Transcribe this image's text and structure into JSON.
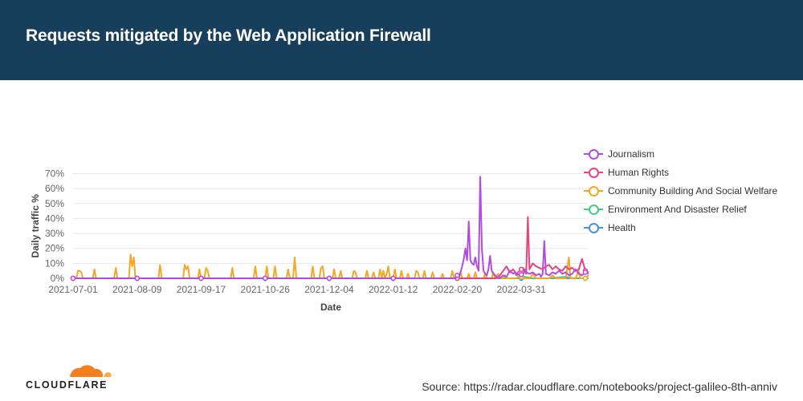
{
  "header": {
    "title": "Requests mitigated by the Web Application Firewall"
  },
  "footer": {
    "logo_text": "CLOUDFLARE",
    "source": "Source: https://radar.cloudflare.com/notebooks/project-galileo-8th-anniv"
  },
  "chart_data": {
    "type": "line",
    "xlabel": "Date",
    "ylabel": "Daily traffic %",
    "ylim": [
      0,
      70
    ],
    "y_ticks": [
      "0%",
      "10%",
      "20%",
      "30%",
      "40%",
      "50%",
      "60%",
      "70%"
    ],
    "x_ticks": [
      "2021-07-01",
      "2021-08-09",
      "2021-09-17",
      "2021-10-26",
      "2021-12-04",
      "2022-01-12",
      "2022-02-20",
      "2022-03-31"
    ],
    "x_domain_days": [
      0,
      314
    ],
    "grid": true,
    "legend_position": "right",
    "series": [
      {
        "name": "Journalism",
        "color": "#b44be1",
        "points": [
          [
            0,
            0
          ],
          [
            39,
            0
          ],
          [
            78,
            0
          ],
          [
            117,
            0
          ],
          [
            156,
            0
          ],
          [
            195,
            0
          ],
          [
            233,
            0
          ],
          [
            234,
            2
          ],
          [
            235,
            1
          ],
          [
            236,
            4
          ],
          [
            237,
            8
          ],
          [
            238,
            13
          ],
          [
            239,
            20
          ],
          [
            240,
            12
          ],
          [
            241,
            38
          ],
          [
            242,
            12
          ],
          [
            243,
            10
          ],
          [
            244,
            9
          ],
          [
            245,
            14
          ],
          [
            246,
            8
          ],
          [
            247,
            5
          ],
          [
            248,
            68
          ],
          [
            249,
            20
          ],
          [
            250,
            5
          ],
          [
            251,
            3
          ],
          [
            252,
            2
          ],
          [
            253,
            6
          ],
          [
            254,
            15
          ],
          [
            255,
            5
          ],
          [
            256,
            3
          ],
          [
            258,
            1
          ],
          [
            260,
            0
          ],
          [
            262,
            2
          ],
          [
            264,
            1
          ],
          [
            266,
            5
          ],
          [
            268,
            3
          ],
          [
            269,
            4
          ],
          [
            270,
            2
          ],
          [
            272,
            3
          ],
          [
            274,
            2
          ],
          [
            275,
            6
          ],
          [
            276,
            4
          ],
          [
            278,
            3
          ],
          [
            280,
            4
          ],
          [
            282,
            2
          ],
          [
            284,
            3
          ],
          [
            285,
            1
          ],
          [
            286,
            3
          ],
          [
            287,
            25
          ],
          [
            288,
            3
          ],
          [
            290,
            2
          ],
          [
            292,
            4
          ],
          [
            294,
            3
          ],
          [
            296,
            5
          ],
          [
            298,
            3
          ],
          [
            300,
            4
          ],
          [
            302,
            2
          ],
          [
            304,
            3
          ],
          [
            306,
            6
          ],
          [
            308,
            3
          ],
          [
            310,
            2
          ],
          [
            312,
            4
          ],
          [
            314,
            3
          ]
        ]
      },
      {
        "name": "Human Rights",
        "color": "#e8447b",
        "points": [
          [
            0,
            0
          ],
          [
            100,
            0
          ],
          [
            200,
            0
          ],
          [
            250,
            0
          ],
          [
            258,
            0
          ],
          [
            260,
            2
          ],
          [
            262,
            5
          ],
          [
            264,
            8
          ],
          [
            266,
            4
          ],
          [
            268,
            6
          ],
          [
            270,
            3
          ],
          [
            272,
            5
          ],
          [
            274,
            7
          ],
          [
            276,
            3
          ],
          [
            277,
            41
          ],
          [
            278,
            6
          ],
          [
            280,
            10
          ],
          [
            282,
            8
          ],
          [
            284,
            7
          ],
          [
            286,
            6
          ],
          [
            288,
            8
          ],
          [
            290,
            9
          ],
          [
            292,
            6
          ],
          [
            294,
            8
          ],
          [
            296,
            6
          ],
          [
            298,
            5
          ],
          [
            300,
            8
          ],
          [
            302,
            6
          ],
          [
            304,
            7
          ],
          [
            306,
            5
          ],
          [
            308,
            6
          ],
          [
            310,
            13
          ],
          [
            312,
            5
          ],
          [
            314,
            4
          ]
        ]
      },
      {
        "name": "Community Building And Social Welfare",
        "color": "#f5a623",
        "points": [
          [
            0,
            0
          ],
          [
            2,
            0
          ],
          [
            3,
            5
          ],
          [
            4,
            5
          ],
          [
            5,
            4
          ],
          [
            6,
            0
          ],
          [
            12,
            0
          ],
          [
            13,
            6
          ],
          [
            14,
            0
          ],
          [
            25,
            0
          ],
          [
            26,
            7
          ],
          [
            27,
            0
          ],
          [
            34,
            0
          ],
          [
            35,
            16
          ],
          [
            36,
            8
          ],
          [
            37,
            14
          ],
          [
            38,
            0
          ],
          [
            52,
            0
          ],
          [
            53,
            9
          ],
          [
            54,
            0
          ],
          [
            67,
            0
          ],
          [
            68,
            9
          ],
          [
            69,
            6
          ],
          [
            70,
            8
          ],
          [
            71,
            0
          ],
          [
            76,
            0
          ],
          [
            77,
            6
          ],
          [
            78,
            0
          ],
          [
            80,
            0
          ],
          [
            81,
            7
          ],
          [
            82,
            5
          ],
          [
            83,
            0
          ],
          [
            96,
            0
          ],
          [
            97,
            7
          ],
          [
            98,
            0
          ],
          [
            110,
            0
          ],
          [
            111,
            8
          ],
          [
            112,
            0
          ],
          [
            117,
            0
          ],
          [
            118,
            8
          ],
          [
            119,
            0
          ],
          [
            122,
            0
          ],
          [
            123,
            8
          ],
          [
            124,
            0
          ],
          [
            130,
            0
          ],
          [
            131,
            6
          ],
          [
            132,
            0
          ],
          [
            134,
            0
          ],
          [
            135,
            14
          ],
          [
            136,
            0
          ],
          [
            145,
            0
          ],
          [
            146,
            8
          ],
          [
            147,
            0
          ],
          [
            150,
            0
          ],
          [
            151,
            7
          ],
          [
            152,
            8
          ],
          [
            153,
            0
          ],
          [
            158,
            0
          ],
          [
            159,
            6
          ],
          [
            160,
            0
          ],
          [
            162,
            0
          ],
          [
            163,
            5
          ],
          [
            164,
            0
          ],
          [
            170,
            0
          ],
          [
            171,
            5
          ],
          [
            172,
            4
          ],
          [
            173,
            0
          ],
          [
            178,
            0
          ],
          [
            179,
            5
          ],
          [
            180,
            0
          ],
          [
            182,
            0
          ],
          [
            183,
            4
          ],
          [
            184,
            0
          ],
          [
            186,
            0
          ],
          [
            187,
            6
          ],
          [
            188,
            0
          ],
          [
            189,
            5
          ],
          [
            190,
            0
          ],
          [
            191,
            3
          ],
          [
            192,
            8
          ],
          [
            193,
            0
          ],
          [
            195,
            0
          ],
          [
            196,
            6
          ],
          [
            197,
            0
          ],
          [
            199,
            0
          ],
          [
            200,
            5
          ],
          [
            201,
            0
          ],
          [
            203,
            0
          ],
          [
            204,
            3
          ],
          [
            205,
            0
          ],
          [
            208,
            0
          ],
          [
            209,
            5
          ],
          [
            210,
            4
          ],
          [
            211,
            0
          ],
          [
            213,
            0
          ],
          [
            214,
            5
          ],
          [
            215,
            0
          ],
          [
            218,
            0
          ],
          [
            219,
            4
          ],
          [
            220,
            0
          ],
          [
            224,
            0
          ],
          [
            225,
            3
          ],
          [
            226,
            0
          ],
          [
            230,
            0
          ],
          [
            231,
            5
          ],
          [
            232,
            0
          ],
          [
            235,
            0
          ],
          [
            236,
            4
          ],
          [
            237,
            0
          ],
          [
            240,
            0
          ],
          [
            241,
            3
          ],
          [
            242,
            0
          ],
          [
            244,
            0
          ],
          [
            245,
            4
          ],
          [
            246,
            0
          ],
          [
            250,
            0
          ],
          [
            251,
            3
          ],
          [
            252,
            0
          ],
          [
            255,
            0
          ],
          [
            256,
            4
          ],
          [
            257,
            0
          ],
          [
            258,
            2
          ],
          [
            259,
            3
          ],
          [
            260,
            0
          ],
          [
            262,
            0
          ],
          [
            263,
            2
          ],
          [
            264,
            0
          ],
          [
            270,
            0
          ],
          [
            272,
            2
          ],
          [
            274,
            0
          ],
          [
            278,
            0
          ],
          [
            280,
            3
          ],
          [
            282,
            0
          ],
          [
            290,
            0
          ],
          [
            292,
            2
          ],
          [
            294,
            0
          ],
          [
            300,
            0
          ],
          [
            302,
            14
          ],
          [
            303,
            0
          ],
          [
            306,
            0
          ],
          [
            308,
            5
          ],
          [
            309,
            0
          ],
          [
            312,
            0
          ],
          [
            314,
            2
          ]
        ]
      },
      {
        "name": "Environment And Disaster Relief",
        "color": "#42cc88",
        "points": [
          [
            0,
            0
          ],
          [
            100,
            0
          ],
          [
            200,
            0
          ],
          [
            260,
            0
          ],
          [
            270,
            0
          ],
          [
            275,
            1
          ],
          [
            280,
            0
          ],
          [
            290,
            0
          ],
          [
            300,
            1
          ],
          [
            305,
            0
          ],
          [
            314,
            0
          ]
        ]
      },
      {
        "name": "Health",
        "color": "#4a90e2",
        "points": [
          [
            0,
            0
          ],
          [
            100,
            0
          ],
          [
            200,
            0
          ],
          [
            270,
            0
          ],
          [
            280,
            0
          ],
          [
            290,
            0
          ],
          [
            300,
            0
          ],
          [
            314,
            0
          ]
        ]
      }
    ]
  }
}
